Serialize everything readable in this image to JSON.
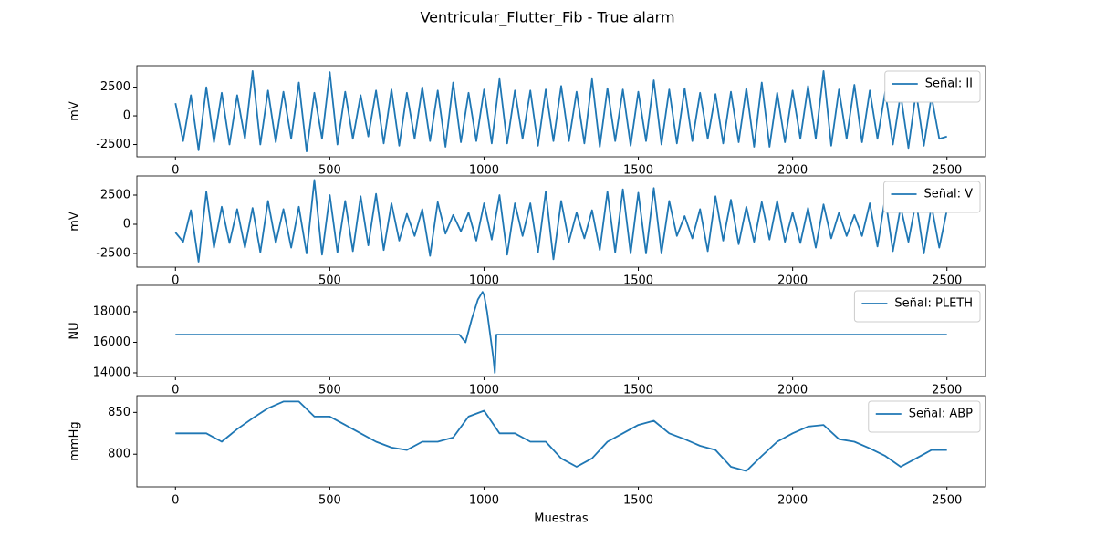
{
  "title": "Ventricular_Flutter_Fib - True alarm",
  "chart_data": [
    {
      "type": "line",
      "ylabel": "mV",
      "xlim": [
        -125,
        2625
      ],
      "ylim": [
        -3570,
        4370
      ],
      "xticks": [
        0,
        500,
        1000,
        1500,
        2000,
        2500
      ],
      "yticks": [
        -2500,
        0,
        2500
      ],
      "legend": "upper right",
      "x": [
        0,
        25,
        50,
        75,
        100,
        125,
        150,
        175,
        200,
        225,
        250,
        275,
        300,
        325,
        350,
        375,
        400,
        425,
        450,
        475,
        500,
        525,
        550,
        575,
        600,
        625,
        650,
        675,
        700,
        725,
        750,
        775,
        800,
        825,
        850,
        875,
        900,
        925,
        950,
        975,
        1000,
        1025,
        1050,
        1075,
        1100,
        1125,
        1150,
        1175,
        1200,
        1225,
        1250,
        1275,
        1300,
        1325,
        1350,
        1375,
        1400,
        1425,
        1450,
        1475,
        1500,
        1525,
        1550,
        1575,
        1600,
        1625,
        1650,
        1675,
        1700,
        1725,
        1750,
        1775,
        1800,
        1825,
        1850,
        1875,
        1900,
        1925,
        1950,
        1975,
        2000,
        2025,
        2050,
        2075,
        2100,
        2125,
        2150,
        2175,
        2200,
        2225,
        2250,
        2275,
        2300,
        2325,
        2350,
        2375,
        2400,
        2425,
        2450,
        2475,
        2500
      ],
      "series": [
        {
          "name": "Señal: II",
          "color": "#1f77b4",
          "values": [
            1100,
            -2200,
            1800,
            -3000,
            2500,
            -2300,
            2000,
            -2500,
            1800,
            -2000,
            3900,
            -2500,
            2200,
            -2300,
            2100,
            -2000,
            2900,
            -3100,
            2000,
            -2000,
            3800,
            -2500,
            2100,
            -2000,
            1800,
            -1800,
            2200,
            -2400,
            2300,
            -2600,
            2000,
            -2000,
            2500,
            -2200,
            2200,
            -2700,
            2900,
            -2300,
            2000,
            -2200,
            2300,
            -2400,
            3200,
            -2400,
            2200,
            -2000,
            2200,
            -2600,
            2300,
            -2200,
            2600,
            -2200,
            2100,
            -2400,
            3200,
            -2700,
            2400,
            -2200,
            2300,
            -2600,
            2100,
            -2200,
            3100,
            -2500,
            2300,
            -2400,
            2400,
            -2200,
            2000,
            -2000,
            1900,
            -2400,
            2100,
            -2300,
            2400,
            -2700,
            2900,
            -2700,
            2000,
            -2300,
            2200,
            -2000,
            2600,
            -2000,
            3900,
            -2600,
            2300,
            -2000,
            2700,
            -2300,
            2200,
            -2000,
            2100,
            -2500,
            1900,
            -2800,
            2100,
            -2600,
            1700,
            -2000,
            -1800
          ]
        }
      ]
    },
    {
      "type": "line",
      "ylabel": "mV",
      "xlim": [
        -125,
        2625
      ],
      "ylim": [
        -3670,
        4140
      ],
      "xticks": [
        0,
        500,
        1000,
        1500,
        2000,
        2500
      ],
      "yticks": [
        -2500,
        0,
        2500
      ],
      "legend": "upper right",
      "x": [
        0,
        25,
        50,
        75,
        100,
        125,
        150,
        175,
        200,
        225,
        250,
        275,
        300,
        325,
        350,
        375,
        400,
        425,
        450,
        475,
        500,
        525,
        550,
        575,
        600,
        625,
        650,
        675,
        700,
        725,
        750,
        775,
        800,
        825,
        850,
        875,
        900,
        925,
        950,
        975,
        1000,
        1025,
        1050,
        1075,
        1100,
        1125,
        1150,
        1175,
        1200,
        1225,
        1250,
        1275,
        1300,
        1325,
        1350,
        1375,
        1400,
        1425,
        1450,
        1475,
        1500,
        1525,
        1550,
        1575,
        1600,
        1625,
        1650,
        1675,
        1700,
        1725,
        1750,
        1775,
        1800,
        1825,
        1850,
        1875,
        1900,
        1925,
        1950,
        1975,
        2000,
        2025,
        2050,
        2075,
        2100,
        2125,
        2150,
        2175,
        2200,
        2225,
        2250,
        2275,
        2300,
        2325,
        2350,
        2375,
        2400,
        2425,
        2450,
        2475,
        2500
      ],
      "series": [
        {
          "name": "Señal: V",
          "color": "#1f77b4",
          "values": [
            -700,
            -1500,
            1200,
            -3200,
            2800,
            -2000,
            1500,
            -1600,
            1300,
            -2000,
            1400,
            -2400,
            2000,
            -1600,
            1300,
            -2000,
            1500,
            -2500,
            3800,
            -2600,
            2500,
            -2400,
            2000,
            -2300,
            2400,
            -1800,
            2600,
            -2200,
            1800,
            -1400,
            900,
            -1000,
            1300,
            -2700,
            1900,
            -800,
            800,
            -600,
            1000,
            -1400,
            1800,
            -1300,
            2500,
            -2600,
            1800,
            -1000,
            1800,
            -2400,
            2800,
            -3000,
            2000,
            -1500,
            1000,
            -1200,
            1200,
            -2200,
            2800,
            -2400,
            3000,
            -2500,
            2700,
            -2500,
            3100,
            -2500,
            2000,
            -1000,
            700,
            -1200,
            1300,
            -2300,
            2400,
            -1400,
            2100,
            -1700,
            1500,
            -1500,
            1900,
            -1300,
            2000,
            -1500,
            1000,
            -1600,
            1400,
            -2000,
            1700,
            -1200,
            1000,
            -1000,
            800,
            -1000,
            1800,
            -1900,
            2300,
            -2300,
            1500,
            -1500,
            2000,
            -2500,
            1600,
            -2000,
            1200
          ]
        }
      ]
    },
    {
      "type": "line",
      "ylabel": "NU",
      "xlim": [
        -125,
        2625
      ],
      "ylim": [
        13760,
        19730
      ],
      "xticks": [
        0,
        500,
        1000,
        1500,
        2000,
        2500
      ],
      "yticks": [
        14000,
        16000,
        18000
      ],
      "legend": "upper right",
      "x": [
        0,
        920,
        940,
        960,
        980,
        995,
        1000,
        1010,
        1020,
        1030,
        1035,
        1040,
        2500
      ],
      "series": [
        {
          "name": "Señal: PLETH",
          "color": "#1f77b4",
          "values": [
            16500,
            16500,
            16000,
            17500,
            18800,
            19300,
            19100,
            18000,
            16500,
            15000,
            14000,
            16500,
            16500
          ]
        }
      ]
    },
    {
      "type": "line",
      "ylabel": "mmHg",
      "xlabel": "Muestras",
      "xlim": [
        -125,
        2625
      ],
      "ylim": [
        761,
        870
      ],
      "xticks": [
        0,
        500,
        1000,
        1500,
        2000,
        2500
      ],
      "yticks": [
        800,
        850
      ],
      "legend": "upper right",
      "x": [
        0,
        50,
        100,
        150,
        200,
        250,
        300,
        350,
        400,
        450,
        500,
        550,
        600,
        650,
        700,
        750,
        800,
        850,
        900,
        950,
        1000,
        1050,
        1100,
        1150,
        1200,
        1250,
        1300,
        1350,
        1400,
        1450,
        1500,
        1550,
        1600,
        1650,
        1700,
        1750,
        1800,
        1850,
        1900,
        1950,
        2000,
        2050,
        2100,
        2150,
        2200,
        2250,
        2300,
        2350,
        2400,
        2450,
        2500
      ],
      "series": [
        {
          "name": "Señal: ABP",
          "color": "#1f77b4",
          "values": [
            825,
            825,
            825,
            815,
            830,
            843,
            855,
            863,
            863,
            845,
            845,
            835,
            825,
            815,
            808,
            805,
            815,
            815,
            820,
            845,
            852,
            825,
            825,
            815,
            815,
            795,
            785,
            795,
            815,
            825,
            835,
            840,
            825,
            818,
            810,
            805,
            785,
            780,
            798,
            815,
            825,
            833,
            835,
            818,
            815,
            807,
            798,
            785,
            795,
            805,
            805
          ]
        }
      ]
    }
  ]
}
